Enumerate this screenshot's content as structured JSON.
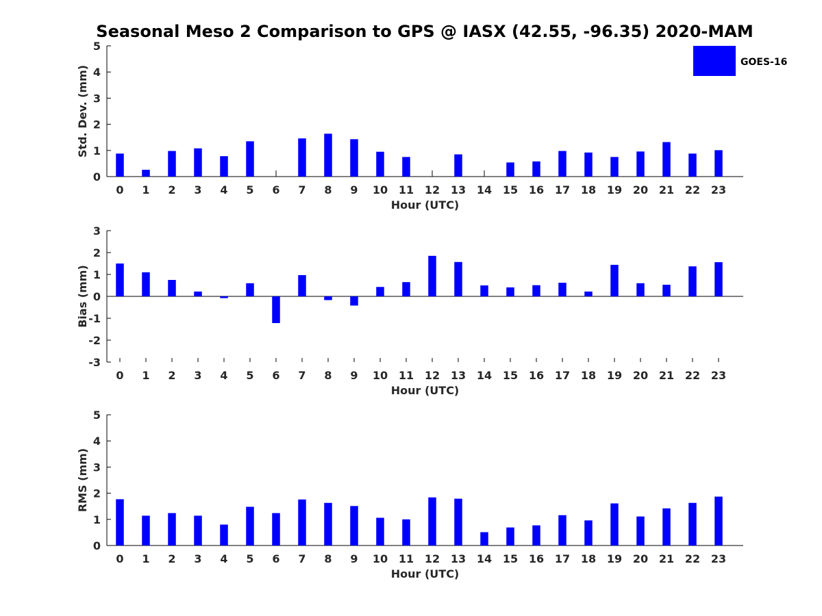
{
  "figure": {
    "title": "Seasonal Meso 2 Comparison to GPS @ IASX (42.55, -96.35) 2020-MAM",
    "legend_label": "GOES-16",
    "legend_placement": "top-right",
    "bar_color": "#0000ff"
  },
  "chart_data": [
    {
      "type": "bar",
      "ylabel": "Std. Dev. (mm)",
      "xlabel": "Hour (UTC)",
      "ylim": [
        0,
        5
      ],
      "yticks": [
        0,
        1,
        2,
        3,
        4,
        5
      ],
      "categories": [
        "0",
        "1",
        "2",
        "3",
        "4",
        "5",
        "6",
        "7",
        "8",
        "9",
        "10",
        "11",
        "12",
        "13",
        "14",
        "15",
        "16",
        "17",
        "18",
        "19",
        "20",
        "21",
        "22",
        "23"
      ],
      "series": [
        {
          "name": "GOES-16",
          "values": [
            0.88,
            0.26,
            0.98,
            1.08,
            0.78,
            1.35,
            0.0,
            1.46,
            1.64,
            1.43,
            0.95,
            0.75,
            0.0,
            0.85,
            0.0,
            0.54,
            0.58,
            0.98,
            0.92,
            0.75,
            0.96,
            1.32,
            0.88,
            1.01
          ]
        }
      ],
      "legend": true
    },
    {
      "type": "bar",
      "ylabel": "Bias (mm)",
      "xlabel": "Hour (UTC)",
      "ylim": [
        -3,
        3
      ],
      "yticks": [
        -3,
        -2,
        -1,
        0,
        1,
        2,
        3
      ],
      "categories": [
        "0",
        "1",
        "2",
        "3",
        "4",
        "5",
        "6",
        "7",
        "8",
        "9",
        "10",
        "11",
        "12",
        "13",
        "14",
        "15",
        "16",
        "17",
        "18",
        "19",
        "20",
        "21",
        "22",
        "23"
      ],
      "series": [
        {
          "name": "GOES-16",
          "values": [
            1.5,
            1.1,
            0.75,
            0.22,
            -0.08,
            0.6,
            -1.22,
            0.97,
            -0.17,
            -0.42,
            0.43,
            0.65,
            1.85,
            1.57,
            0.5,
            0.41,
            0.51,
            0.62,
            0.22,
            1.44,
            0.6,
            0.53,
            1.37,
            1.56
          ]
        }
      ],
      "legend": false
    },
    {
      "type": "bar",
      "ylabel": "RMS (mm)",
      "xlabel": "Hour (UTC)",
      "ylim": [
        0,
        5
      ],
      "yticks": [
        0,
        1,
        2,
        3,
        4,
        5
      ],
      "categories": [
        "0",
        "1",
        "2",
        "3",
        "4",
        "5",
        "6",
        "7",
        "8",
        "9",
        "10",
        "11",
        "12",
        "13",
        "14",
        "15",
        "16",
        "17",
        "18",
        "19",
        "20",
        "21",
        "22",
        "23"
      ],
      "series": [
        {
          "name": "GOES-16",
          "values": [
            1.77,
            1.14,
            1.24,
            1.14,
            0.8,
            1.48,
            1.24,
            1.76,
            1.63,
            1.51,
            1.06,
            1.0,
            1.84,
            1.79,
            0.51,
            0.69,
            0.77,
            1.16,
            0.96,
            1.61,
            1.11,
            1.42,
            1.63,
            1.87
          ]
        }
      ],
      "legend": false
    }
  ]
}
